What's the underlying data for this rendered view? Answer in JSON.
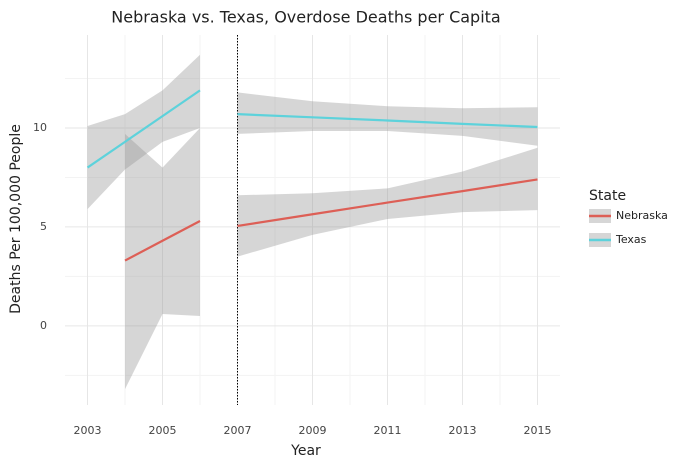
{
  "chart_data": {
    "type": "line",
    "title": "Nebraska vs. Texas, Overdose Deaths per Capita",
    "x_label": "Year",
    "y_label": "Deaths Per 100,000 People",
    "legend_title": "State",
    "x": [
      2003,
      2004,
      2005,
      2006,
      2007,
      2009,
      2011,
      2013,
      2015
    ],
    "break_x": 2007,
    "series": [
      {
        "name": "Nebraska",
        "color": "#dd5f56",
        "values": [
          null,
          3.3,
          4.3,
          5.3,
          5.05,
          5.64,
          6.23,
          6.81,
          7.4
        ],
        "lower": [
          null,
          -3.2,
          0.6,
          0.5,
          3.5,
          4.6,
          5.4,
          5.75,
          5.85
        ],
        "upper": [
          null,
          9.7,
          8.0,
          10.0,
          6.6,
          6.7,
          6.95,
          7.8,
          9.0
        ]
      },
      {
        "name": "Texas",
        "color": "#5dd2db",
        "values": [
          8.0,
          9.3,
          10.6,
          11.9,
          10.7,
          10.54,
          10.38,
          10.21,
          10.05
        ],
        "lower": [
          5.9,
          7.9,
          9.3,
          10.0,
          9.7,
          9.85,
          9.85,
          9.6,
          9.1
        ],
        "upper": [
          10.1,
          10.7,
          11.9,
          13.7,
          11.8,
          11.35,
          11.1,
          11.0,
          11.05
        ]
      }
    ],
    "band_color": "#999999",
    "xlim": [
      2002.4,
      2015.6
    ],
    "ylim": [
      -4,
      14.7
    ],
    "xticks": [
      2003,
      2005,
      2007,
      2009,
      2011,
      2013,
      2015
    ],
    "yticks": [
      0,
      5,
      10
    ],
    "grid": true
  }
}
